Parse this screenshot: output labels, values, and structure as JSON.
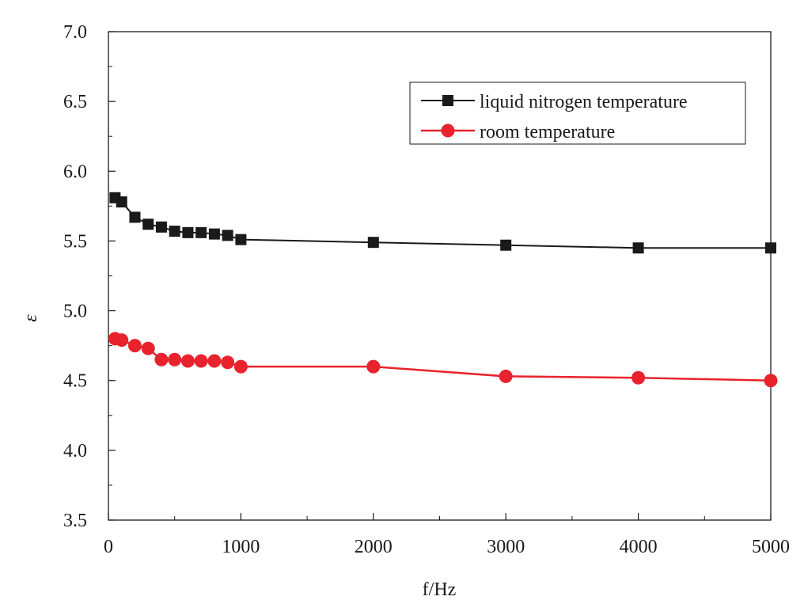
{
  "chart_data": {
    "type": "line",
    "title": "",
    "xlabel": "f/Hz",
    "ylabel": "ε",
    "xlim": [
      0,
      5000
    ],
    "ylim": [
      3.5,
      7.0
    ],
    "xticks": [
      0,
      1000,
      2000,
      3000,
      4000,
      5000
    ],
    "xtick_labels": [
      "0",
      "1000",
      "2000",
      "3000",
      "4000",
      "5000"
    ],
    "yticks": [
      3.5,
      4.0,
      4.5,
      5.0,
      5.5,
      6.0,
      6.5,
      7.0
    ],
    "ytick_labels": [
      "3.5",
      "4.0",
      "4.5",
      "5.0",
      "5.5",
      "6.0",
      "6.5",
      "7.0"
    ],
    "grid": false,
    "legend_position": "top-right",
    "series": [
      {
        "name": "liquid nitrogen temperature",
        "marker": "square",
        "color": "#1a1a1a",
        "x": [
          50,
          100,
          200,
          300,
          400,
          500,
          600,
          700,
          800,
          900,
          1000,
          2000,
          3000,
          4000,
          5000
        ],
        "y": [
          5.81,
          5.78,
          5.67,
          5.62,
          5.6,
          5.57,
          5.56,
          5.56,
          5.55,
          5.54,
          5.51,
          5.49,
          5.47,
          5.45,
          5.45
        ]
      },
      {
        "name": "room temperature",
        "marker": "circle",
        "color": "#e8232d",
        "x": [
          50,
          100,
          200,
          300,
          400,
          500,
          600,
          700,
          800,
          900,
          1000,
          2000,
          3000,
          4000,
          5000
        ],
        "y": [
          4.8,
          4.79,
          4.75,
          4.73,
          4.65,
          4.65,
          4.64,
          4.64,
          4.64,
          4.63,
          4.6,
          4.6,
          4.53,
          4.52,
          4.5
        ]
      }
    ]
  }
}
